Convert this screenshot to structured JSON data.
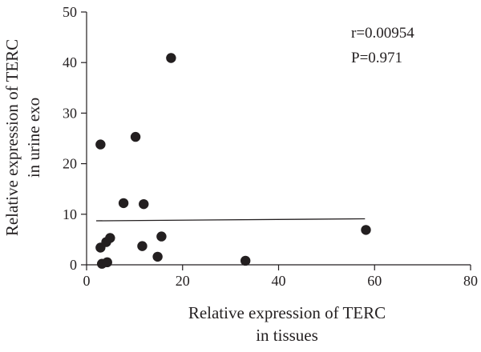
{
  "chart_data": {
    "type": "scatter",
    "xlabel_lines": [
      "Relative expression of TERC",
      "in tissues"
    ],
    "ylabel_lines": [
      "Relative expression of TERC",
      "in urine exo"
    ],
    "xlim": [
      0,
      80
    ],
    "ylim": [
      0,
      50
    ],
    "x_ticks": [
      0,
      20,
      40,
      60,
      80
    ],
    "y_ticks": [
      0,
      10,
      20,
      30,
      40,
      50
    ],
    "grid": false,
    "annotations": [
      "r=0.00954",
      "P=0.971"
    ],
    "points": [
      {
        "x": 2.9,
        "y": 23.8
      },
      {
        "x": 10.2,
        "y": 25.3
      },
      {
        "x": 17.6,
        "y": 40.9
      },
      {
        "x": 7.7,
        "y": 12.2
      },
      {
        "x": 11.9,
        "y": 12.0
      },
      {
        "x": 2.9,
        "y": 3.4
      },
      {
        "x": 4.1,
        "y": 4.5
      },
      {
        "x": 4.9,
        "y": 5.3
      },
      {
        "x": 3.2,
        "y": 0.2
      },
      {
        "x": 4.3,
        "y": 0.5
      },
      {
        "x": 11.6,
        "y": 3.7
      },
      {
        "x": 15.6,
        "y": 5.6
      },
      {
        "x": 14.8,
        "y": 1.6
      },
      {
        "x": 33.1,
        "y": 0.8
      },
      {
        "x": 58.2,
        "y": 6.9
      }
    ],
    "regression_line": {
      "x": [
        2.0,
        58.0
      ],
      "y": [
        8.7,
        9.1
      ]
    },
    "colors": {
      "points": "#231f20",
      "axis": "#231f20",
      "line": "#231f20"
    }
  }
}
